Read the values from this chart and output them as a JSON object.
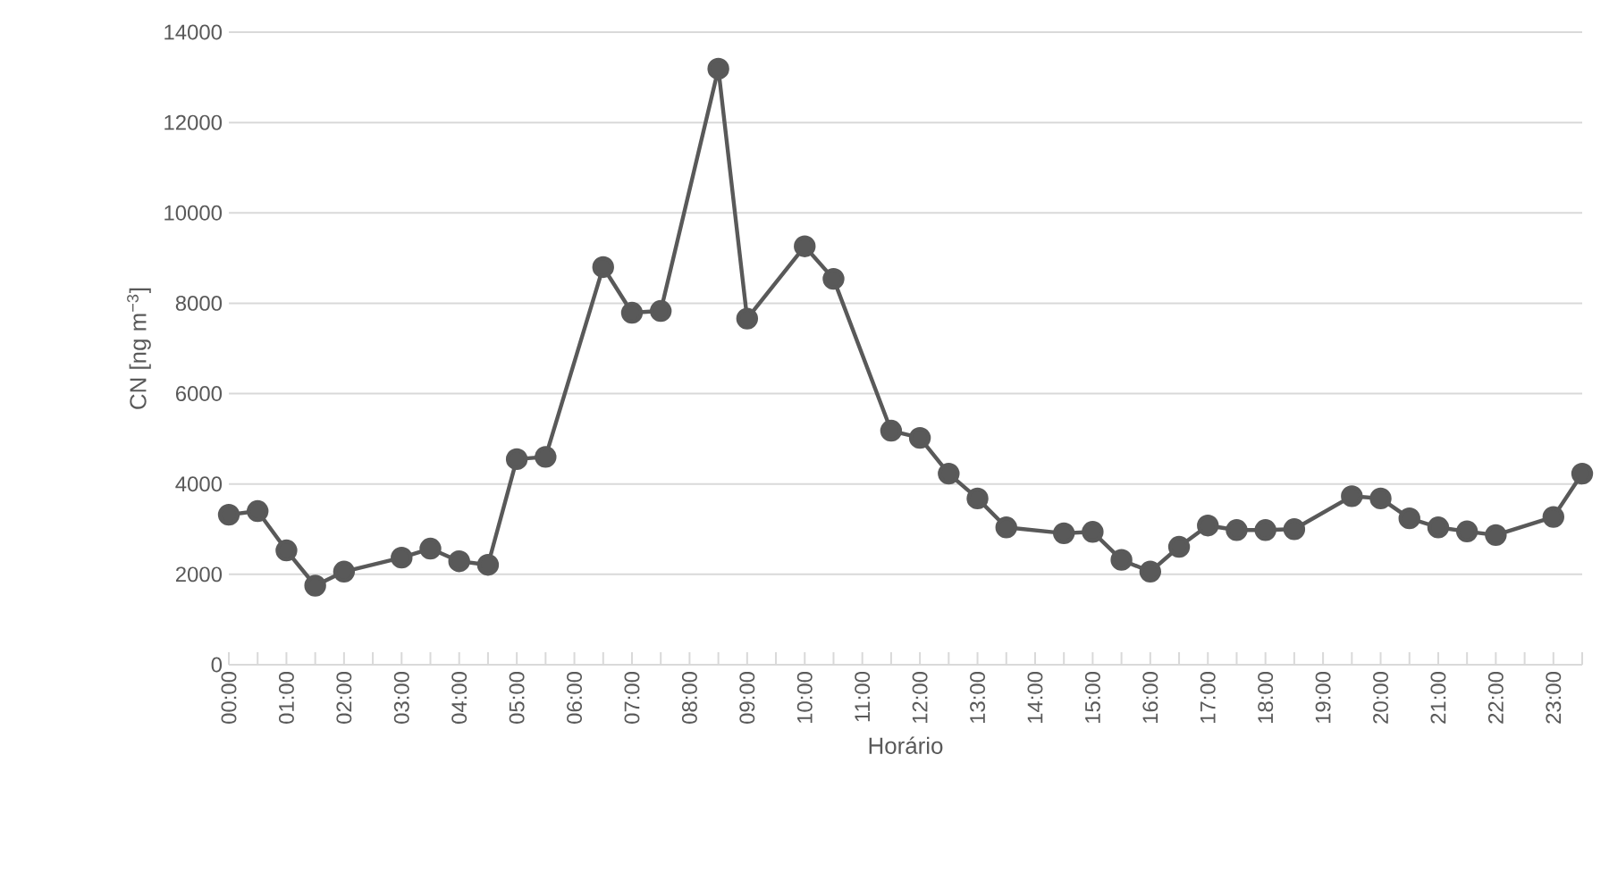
{
  "chart_data": {
    "type": "line",
    "xlabel": "Horário",
    "ylabel": "CN [ng m$^{−3}$]",
    "series": [
      {
        "color": "#595959",
        "x": [
          0,
          0.5,
          1,
          1.5,
          2,
          3,
          3.5,
          4,
          4.5,
          5,
          5.5,
          6.5,
          7,
          7.5,
          8.5,
          9,
          10,
          10.5,
          11.5,
          12,
          12.5,
          13,
          13.5,
          14.5,
          15,
          15.5,
          16,
          16.5,
          17,
          17.5,
          18,
          18.5,
          19.5,
          20,
          20.5,
          21,
          21.5,
          22,
          23,
          23.5
        ],
        "values": [
          3320,
          3400,
          2530,
          1750,
          2060,
          2370,
          2570,
          2290,
          2210,
          4550,
          4600,
          8800,
          7790,
          7830,
          13190,
          7660,
          9260,
          8540,
          5180,
          5020,
          4230,
          3680,
          3040,
          2910,
          2940,
          2320,
          2060,
          2610,
          3080,
          2980,
          2980,
          3000,
          3730,
          3680,
          3240,
          3040,
          2950,
          2870,
          3270,
          4230
        ]
      }
    ],
    "xlim": [
      0,
      23.5
    ],
    "xticks": [
      {
        "value": 0,
        "label": "00:00"
      },
      {
        "value": 0.5,
        "label": null
      },
      {
        "value": 1,
        "label": "01:00"
      },
      {
        "value": 1.5,
        "label": null
      },
      {
        "value": 2,
        "label": "02:00"
      },
      {
        "value": 2.5,
        "label": null
      },
      {
        "value": 3,
        "label": "03:00"
      },
      {
        "value": 3.5,
        "label": null
      },
      {
        "value": 4,
        "label": "04:00"
      },
      {
        "value": 4.5,
        "label": null
      },
      {
        "value": 5,
        "label": "05:00"
      },
      {
        "value": 5.5,
        "label": null
      },
      {
        "value": 6,
        "label": "06:00"
      },
      {
        "value": 6.5,
        "label": null
      },
      {
        "value": 7,
        "label": "07:00"
      },
      {
        "value": 7.5,
        "label": null
      },
      {
        "value": 8,
        "label": "08:00"
      },
      {
        "value": 8.5,
        "label": null
      },
      {
        "value": 9,
        "label": "09:00"
      },
      {
        "value": 9.5,
        "label": null
      },
      {
        "value": 10,
        "label": "10:00"
      },
      {
        "value": 10.5,
        "label": null
      },
      {
        "value": 11,
        "label": "11:00"
      },
      {
        "value": 11.5,
        "label": null
      },
      {
        "value": 12,
        "label": "12:00"
      },
      {
        "value": 12.5,
        "label": null
      },
      {
        "value": 13,
        "label": "13:00"
      },
      {
        "value": 13.5,
        "label": null
      },
      {
        "value": 14,
        "label": "14:00"
      },
      {
        "value": 14.5,
        "label": null
      },
      {
        "value": 15,
        "label": "15:00"
      },
      {
        "value": 15.5,
        "label": null
      },
      {
        "value": 16,
        "label": "16:00"
      },
      {
        "value": 16.5,
        "label": null
      },
      {
        "value": 17,
        "label": "17:00"
      },
      {
        "value": 17.5,
        "label": null
      },
      {
        "value": 18,
        "label": "18:00"
      },
      {
        "value": 18.5,
        "label": null
      },
      {
        "value": 19,
        "label": "19:00"
      },
      {
        "value": 19.5,
        "label": null
      },
      {
        "value": 20,
        "label": "20:00"
      },
      {
        "value": 20.5,
        "label": null
      },
      {
        "value": 21,
        "label": "21:00"
      },
      {
        "value": 21.5,
        "label": null
      },
      {
        "value": 22,
        "label": "22:00"
      },
      {
        "value": 22.5,
        "label": null
      },
      {
        "value": 23,
        "label": "23:00"
      },
      {
        "value": 23.5,
        "label": null
      }
    ],
    "ylim": [
      0,
      14000
    ],
    "yticks": [
      0,
      2000,
      4000,
      6000,
      8000,
      10000,
      12000,
      14000
    ],
    "grid": "y",
    "marker": "circle",
    "line_style": "solid"
  }
}
